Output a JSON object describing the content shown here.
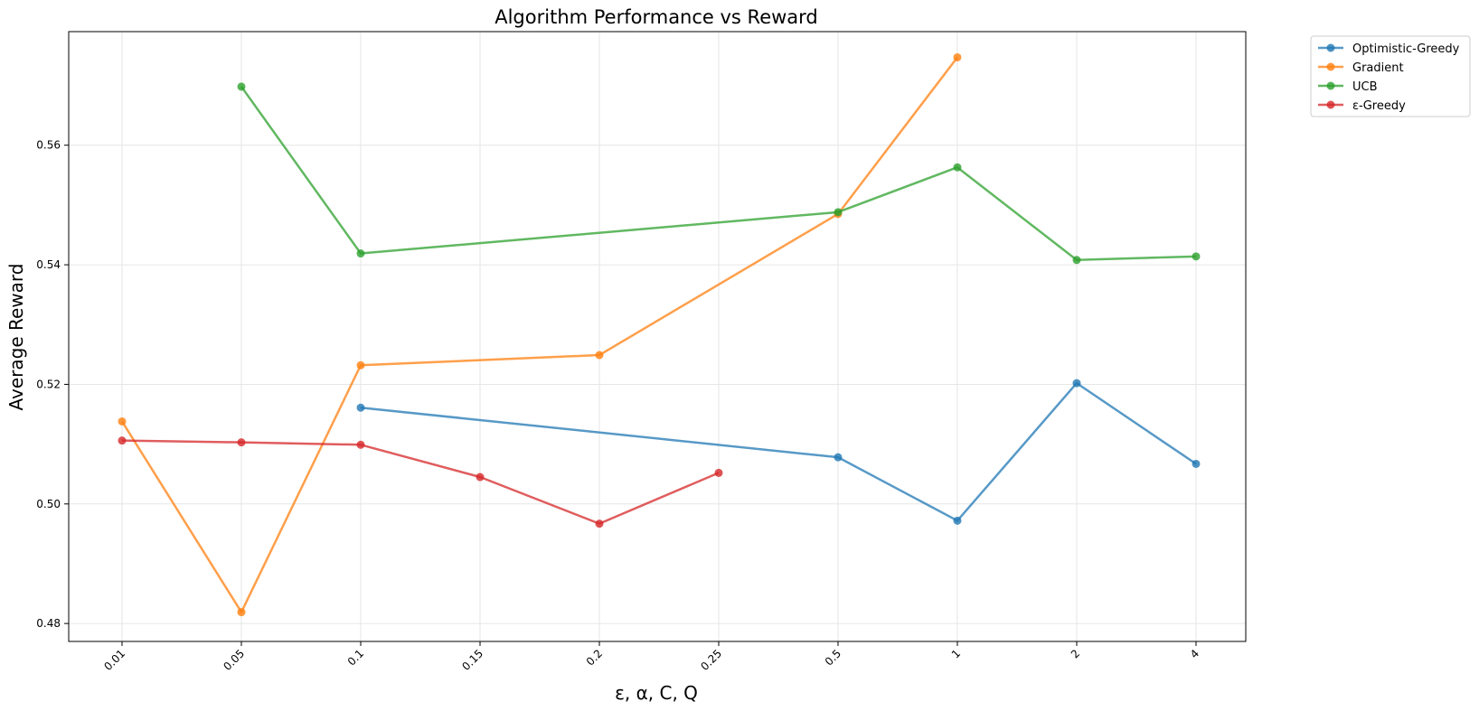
{
  "chart_data": {
    "type": "line",
    "title": "Algorithm Performance vs Reward",
    "xlabel": "ε, α, C, Q",
    "ylabel": "Average Reward",
    "categories": [
      "0.01",
      "0.05",
      "0.1",
      "0.15",
      "0.2",
      "0.25",
      "0.5",
      "1",
      "2",
      "4"
    ],
    "ylim": [
      0.477,
      0.579
    ],
    "yticks": [
      "0.48",
      "0.50",
      "0.52",
      "0.54",
      "0.56"
    ],
    "grid": true,
    "legend_position": "outside top-right",
    "series": [
      {
        "name": "Optimistic-Greedy",
        "color": "#1f77b4",
        "values": [
          null,
          null,
          0.5161,
          null,
          null,
          null,
          0.5078,
          0.4972,
          0.5202,
          0.5067
        ]
      },
      {
        "name": "Gradient",
        "color": "#ff7f0e",
        "values": [
          0.5138,
          0.4819,
          0.5232,
          null,
          0.5249,
          null,
          0.5485,
          0.5747,
          null,
          null
        ]
      },
      {
        "name": "UCB",
        "color": "#2ca02c",
        "values": [
          null,
          0.5698,
          0.5419,
          null,
          null,
          null,
          0.5488,
          0.5563,
          0.5408,
          0.5414
        ]
      },
      {
        "name": "ε-Greedy",
        "color": "#d62728",
        "values": [
          0.5106,
          0.5103,
          0.5099,
          0.5045,
          0.4967,
          0.5052,
          null,
          null,
          null,
          null
        ]
      }
    ]
  }
}
